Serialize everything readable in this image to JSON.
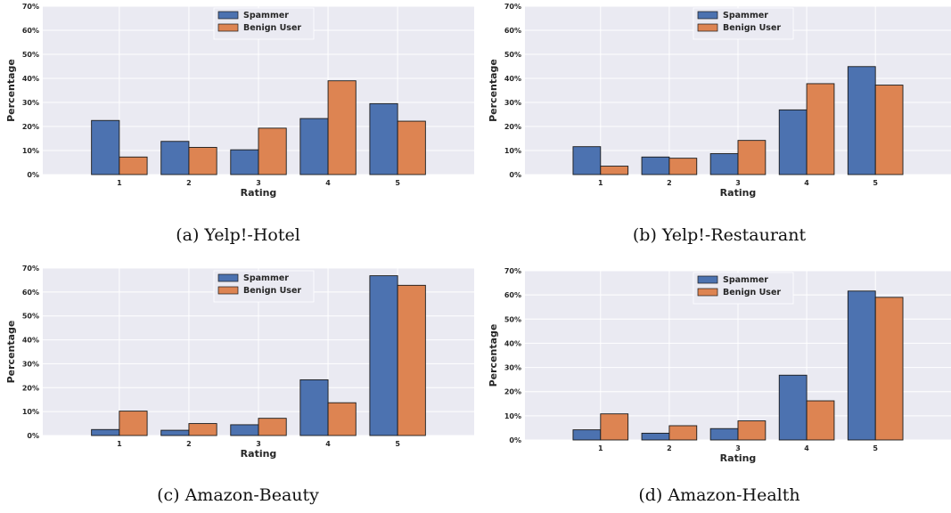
{
  "colors": {
    "spammer": "#4c72b0",
    "benign": "#dd8452",
    "panel_bg": "#eaeaf2",
    "grid": "#ffffff"
  },
  "legend_labels": [
    "Spammer",
    "Benign User"
  ],
  "chart_data": [
    {
      "type": "bar",
      "caption": "(a) Yelp!-Hotel",
      "xlabel": "Rating",
      "ylabel": "Percentage",
      "categories": [
        "1",
        "2",
        "3",
        "4",
        "5"
      ],
      "yticks": [
        "0%",
        "10%",
        "20%",
        "30%",
        "40%",
        "50%",
        "60%",
        "70%"
      ],
      "ylim": [
        0,
        70
      ],
      "legend": "upper-center",
      "grid": true,
      "series": [
        {
          "name": "Spammer",
          "values": [
            22.5,
            13.8,
            10.3,
            23.3,
            29.5
          ]
        },
        {
          "name": "Benign User",
          "values": [
            7.3,
            11.3,
            19.3,
            39.0,
            22.2
          ]
        }
      ]
    },
    {
      "type": "bar",
      "caption": "(b) Yelp!-Restaurant",
      "xlabel": "Rating",
      "ylabel": "Percentage",
      "categories": [
        "1",
        "2",
        "3",
        "4",
        "5"
      ],
      "yticks": [
        "0%",
        "10%",
        "20%",
        "30%",
        "40%",
        "50%",
        "60%",
        "70%"
      ],
      "ylim": [
        0,
        70
      ],
      "legend": "upper-center",
      "grid": true,
      "series": [
        {
          "name": "Spammer",
          "values": [
            11.6,
            7.3,
            8.7,
            26.9,
            44.9
          ]
        },
        {
          "name": "Benign User",
          "values": [
            3.5,
            6.8,
            14.2,
            37.8,
            37.2
          ]
        }
      ]
    },
    {
      "type": "bar",
      "caption": "(c) Amazon-Beauty",
      "xlabel": "Rating",
      "ylabel": "Percentage",
      "categories": [
        "1",
        "2",
        "3",
        "4",
        "5"
      ],
      "yticks": [
        "0%",
        "10%",
        "20%",
        "30%",
        "40%",
        "50%",
        "60%",
        "70%"
      ],
      "ylim": [
        0,
        70
      ],
      "legend": "upper-center",
      "grid": true,
      "series": [
        {
          "name": "Spammer",
          "values": [
            2.5,
            2.2,
            4.5,
            23.3,
            66.8
          ]
        },
        {
          "name": "Benign User",
          "values": [
            10.2,
            5.0,
            7.2,
            13.7,
            62.8
          ]
        }
      ]
    },
    {
      "type": "bar",
      "caption": "(d) Amazon-Health",
      "xlabel": "Rating",
      "ylabel": "Percentage",
      "categories": [
        "1",
        "2",
        "3",
        "4",
        "5"
      ],
      "yticks": [
        "0%",
        "10%",
        "20%",
        "30%",
        "40%",
        "50%",
        "60%",
        "70%"
      ],
      "ylim": [
        0,
        70
      ],
      "legend": "upper-center",
      "grid": true,
      "series": [
        {
          "name": "Spammer",
          "values": [
            4.2,
            2.8,
            4.7,
            26.8,
            61.6
          ]
        },
        {
          "name": "Benign User",
          "values": [
            10.8,
            5.9,
            7.9,
            16.2,
            59.0
          ]
        }
      ]
    }
  ]
}
